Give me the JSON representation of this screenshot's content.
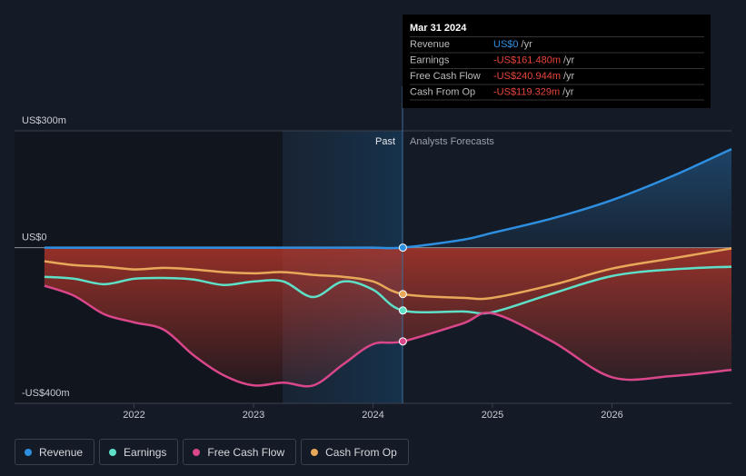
{
  "chart_data": {
    "type": "line",
    "x": [
      2021.25,
      2021.5,
      2021.75,
      2022,
      2022.25,
      2022.5,
      2022.75,
      2023,
      2023.25,
      2023.5,
      2023.75,
      2024,
      2024.25,
      2024.75,
      2025,
      2025.5,
      2026,
      2026.5,
      2027
    ],
    "series": [
      {
        "name": "Revenue",
        "color": "#2e8fe0",
        "values": [
          0,
          0,
          0,
          0,
          0,
          0,
          0,
          0,
          0,
          0,
          0,
          0,
          0,
          20,
          38,
          75,
          122,
          183,
          253
        ]
      },
      {
        "name": "Earnings",
        "color": "#5ee0c8",
        "values": [
          -75,
          -80,
          -94,
          -80,
          -78,
          -82,
          -96,
          -87,
          -87,
          -127,
          -87,
          -108,
          -161.48,
          -164,
          -166,
          -118,
          -73,
          -56,
          -49
        ]
      },
      {
        "name": "Free Cash Flow",
        "color": "#d9478a",
        "values": [
          -98,
          -124,
          -171,
          -192,
          -211,
          -277,
          -328,
          -354,
          -347,
          -354,
          -300,
          -248,
          -240.944,
          -195,
          -169,
          -241,
          -333,
          -330,
          -314
        ]
      },
      {
        "name": "Cash From Op",
        "color": "#e8a85a",
        "values": [
          -35,
          -45,
          -49,
          -56,
          -52,
          -56,
          -63,
          -66,
          -63,
          -70,
          -75,
          -87,
          -119.329,
          -129,
          -129,
          -96,
          -54,
          -28,
          -2
        ]
      }
    ],
    "xlim": [
      2021,
      2027
    ],
    "xticks": [
      2022,
      2023,
      2024,
      2025,
      2026
    ],
    "ylim": [
      -400,
      300
    ],
    "yticks": [
      {
        "value": 300,
        "label": "US$300m"
      },
      {
        "value": 0,
        "label": "US$0"
      },
      {
        "value": -400,
        "label": "-US$400m"
      }
    ],
    "past_label": "Past",
    "forecast_label": "Analysts Forecasts",
    "tooltip": {
      "date": "Mar 31 2024",
      "rows": [
        {
          "label": "Revenue",
          "value": "US$0",
          "unit": "/yr"
        },
        {
          "label": "Earnings",
          "value": "-US$161.480m",
          "unit": "/yr"
        },
        {
          "label": "Free Cash Flow",
          "value": "-US$240.944m",
          "unit": "/yr"
        },
        {
          "label": "Cash From Op",
          "value": "-US$119.329m",
          "unit": "/yr"
        }
      ]
    }
  }
}
